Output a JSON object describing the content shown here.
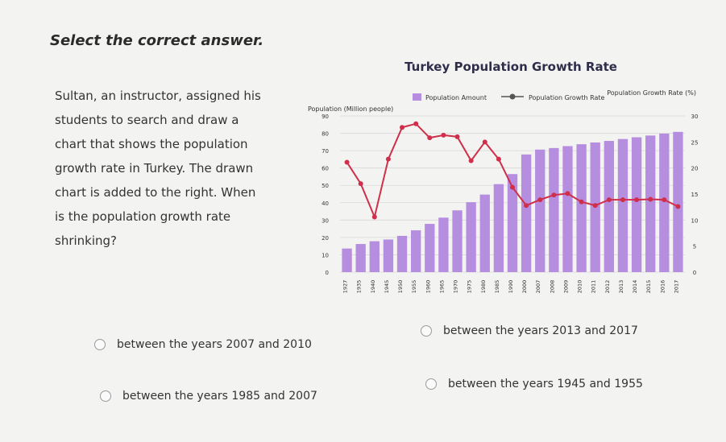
{
  "heading": "Select the correct answer.",
  "question_lines": [
    "Sultan, an instructor, assigned his",
    "students to search and draw a",
    "chart that shows the population",
    "growth rate in Turkey. The drawn",
    "chart is added to the right. When",
    "is the population growth rate",
    "shrinking?"
  ],
  "options": [
    {
      "label": "between the years 2007 and 2010"
    },
    {
      "label": "between the years 2013 and 2017"
    },
    {
      "label": "between the years 1985 and 2007"
    },
    {
      "label": "between the years 1945 and 1955"
    }
  ],
  "colors": {
    "bar": "#b68ee0",
    "line": "#cf2f4a",
    "axis_text": "#333333"
  },
  "chart_data": {
    "type": "bar",
    "title": "Turkey Population Growth Rate",
    "left_axis_label": "Population (Million people)",
    "right_axis_label": "Population Growth Rate (%)",
    "legend": [
      "Population Amount",
      "Population Growth Rate"
    ],
    "legend_placement": "top",
    "categories": [
      "1927",
      "1935",
      "1940",
      "1945",
      "1950",
      "1955",
      "1960",
      "1965",
      "1970",
      "1975",
      "1980",
      "1985",
      "1990",
      "2000",
      "2007",
      "2008",
      "2009",
      "2010",
      "2011",
      "2012",
      "2013",
      "2014",
      "2015",
      "2016",
      "2017"
    ],
    "left_ticks": [
      "0",
      "10",
      "20",
      "30",
      "40",
      "50",
      "60",
      "70",
      "80",
      "90"
    ],
    "right_ticks": [
      "0",
      "5",
      "10",
      "15",
      "20",
      "25",
      "30"
    ],
    "ylim_left": [
      0,
      90
    ],
    "ylim_right": [
      0,
      30
    ],
    "series": [
      {
        "name": "Population Amount",
        "axis": "left",
        "values": [
          13.6,
          16.2,
          17.8,
          18.8,
          20.9,
          24.1,
          27.8,
          31.4,
          35.6,
          40.3,
          44.7,
          50.7,
          56.5,
          67.8,
          70.6,
          71.5,
          72.6,
          73.7,
          74.7,
          75.6,
          76.7,
          77.7,
          78.7,
          79.8,
          80.8
        ]
      },
      {
        "name": "Population Growth Rate",
        "axis": "right",
        "values": [
          21.1,
          17.0,
          10.6,
          21.7,
          27.8,
          28.5,
          25.8,
          26.3,
          26.0,
          21.4,
          25.0,
          21.7,
          16.3,
          12.8,
          13.9,
          14.8,
          15.1,
          13.5,
          12.8,
          13.9,
          13.9,
          13.9,
          14.0,
          13.9,
          12.6
        ]
      }
    ]
  }
}
